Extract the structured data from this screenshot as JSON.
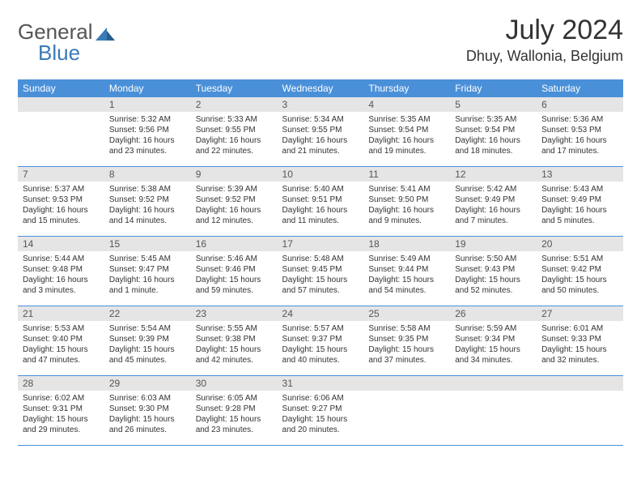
{
  "brand": {
    "part1": "General",
    "part2": "Blue"
  },
  "title": "July 2024",
  "location": "Dhuy, Wallonia, Belgium",
  "theme": {
    "header_bg": "#4a90d9",
    "header_text": "#ffffff",
    "daynum_bg": "#e5e5e5",
    "rule_color": "#4a90d9",
    "text_color": "#333333"
  },
  "weekdays": [
    "Sunday",
    "Monday",
    "Tuesday",
    "Wednesday",
    "Thursday",
    "Friday",
    "Saturday"
  ],
  "first_weekday_index": 1,
  "days": [
    {
      "n": 1,
      "sunrise": "5:32 AM",
      "sunset": "9:56 PM",
      "daylight": "16 hours and 23 minutes."
    },
    {
      "n": 2,
      "sunrise": "5:33 AM",
      "sunset": "9:55 PM",
      "daylight": "16 hours and 22 minutes."
    },
    {
      "n": 3,
      "sunrise": "5:34 AM",
      "sunset": "9:55 PM",
      "daylight": "16 hours and 21 minutes."
    },
    {
      "n": 4,
      "sunrise": "5:35 AM",
      "sunset": "9:54 PM",
      "daylight": "16 hours and 19 minutes."
    },
    {
      "n": 5,
      "sunrise": "5:35 AM",
      "sunset": "9:54 PM",
      "daylight": "16 hours and 18 minutes."
    },
    {
      "n": 6,
      "sunrise": "5:36 AM",
      "sunset": "9:53 PM",
      "daylight": "16 hours and 17 minutes."
    },
    {
      "n": 7,
      "sunrise": "5:37 AM",
      "sunset": "9:53 PM",
      "daylight": "16 hours and 15 minutes."
    },
    {
      "n": 8,
      "sunrise": "5:38 AM",
      "sunset": "9:52 PM",
      "daylight": "16 hours and 14 minutes."
    },
    {
      "n": 9,
      "sunrise": "5:39 AM",
      "sunset": "9:52 PM",
      "daylight": "16 hours and 12 minutes."
    },
    {
      "n": 10,
      "sunrise": "5:40 AM",
      "sunset": "9:51 PM",
      "daylight": "16 hours and 11 minutes."
    },
    {
      "n": 11,
      "sunrise": "5:41 AM",
      "sunset": "9:50 PM",
      "daylight": "16 hours and 9 minutes."
    },
    {
      "n": 12,
      "sunrise": "5:42 AM",
      "sunset": "9:49 PM",
      "daylight": "16 hours and 7 minutes."
    },
    {
      "n": 13,
      "sunrise": "5:43 AM",
      "sunset": "9:49 PM",
      "daylight": "16 hours and 5 minutes."
    },
    {
      "n": 14,
      "sunrise": "5:44 AM",
      "sunset": "9:48 PM",
      "daylight": "16 hours and 3 minutes."
    },
    {
      "n": 15,
      "sunrise": "5:45 AM",
      "sunset": "9:47 PM",
      "daylight": "16 hours and 1 minute."
    },
    {
      "n": 16,
      "sunrise": "5:46 AM",
      "sunset": "9:46 PM",
      "daylight": "15 hours and 59 minutes."
    },
    {
      "n": 17,
      "sunrise": "5:48 AM",
      "sunset": "9:45 PM",
      "daylight": "15 hours and 57 minutes."
    },
    {
      "n": 18,
      "sunrise": "5:49 AM",
      "sunset": "9:44 PM",
      "daylight": "15 hours and 54 minutes."
    },
    {
      "n": 19,
      "sunrise": "5:50 AM",
      "sunset": "9:43 PM",
      "daylight": "15 hours and 52 minutes."
    },
    {
      "n": 20,
      "sunrise": "5:51 AM",
      "sunset": "9:42 PM",
      "daylight": "15 hours and 50 minutes."
    },
    {
      "n": 21,
      "sunrise": "5:53 AM",
      "sunset": "9:40 PM",
      "daylight": "15 hours and 47 minutes."
    },
    {
      "n": 22,
      "sunrise": "5:54 AM",
      "sunset": "9:39 PM",
      "daylight": "15 hours and 45 minutes."
    },
    {
      "n": 23,
      "sunrise": "5:55 AM",
      "sunset": "9:38 PM",
      "daylight": "15 hours and 42 minutes."
    },
    {
      "n": 24,
      "sunrise": "5:57 AM",
      "sunset": "9:37 PM",
      "daylight": "15 hours and 40 minutes."
    },
    {
      "n": 25,
      "sunrise": "5:58 AM",
      "sunset": "9:35 PM",
      "daylight": "15 hours and 37 minutes."
    },
    {
      "n": 26,
      "sunrise": "5:59 AM",
      "sunset": "9:34 PM",
      "daylight": "15 hours and 34 minutes."
    },
    {
      "n": 27,
      "sunrise": "6:01 AM",
      "sunset": "9:33 PM",
      "daylight": "15 hours and 32 minutes."
    },
    {
      "n": 28,
      "sunrise": "6:02 AM",
      "sunset": "9:31 PM",
      "daylight": "15 hours and 29 minutes."
    },
    {
      "n": 29,
      "sunrise": "6:03 AM",
      "sunset": "9:30 PM",
      "daylight": "15 hours and 26 minutes."
    },
    {
      "n": 30,
      "sunrise": "6:05 AM",
      "sunset": "9:28 PM",
      "daylight": "15 hours and 23 minutes."
    },
    {
      "n": 31,
      "sunrise": "6:06 AM",
      "sunset": "9:27 PM",
      "daylight": "15 hours and 20 minutes."
    }
  ],
  "labels": {
    "sunrise": "Sunrise:",
    "sunset": "Sunset:",
    "daylight": "Daylight:"
  }
}
